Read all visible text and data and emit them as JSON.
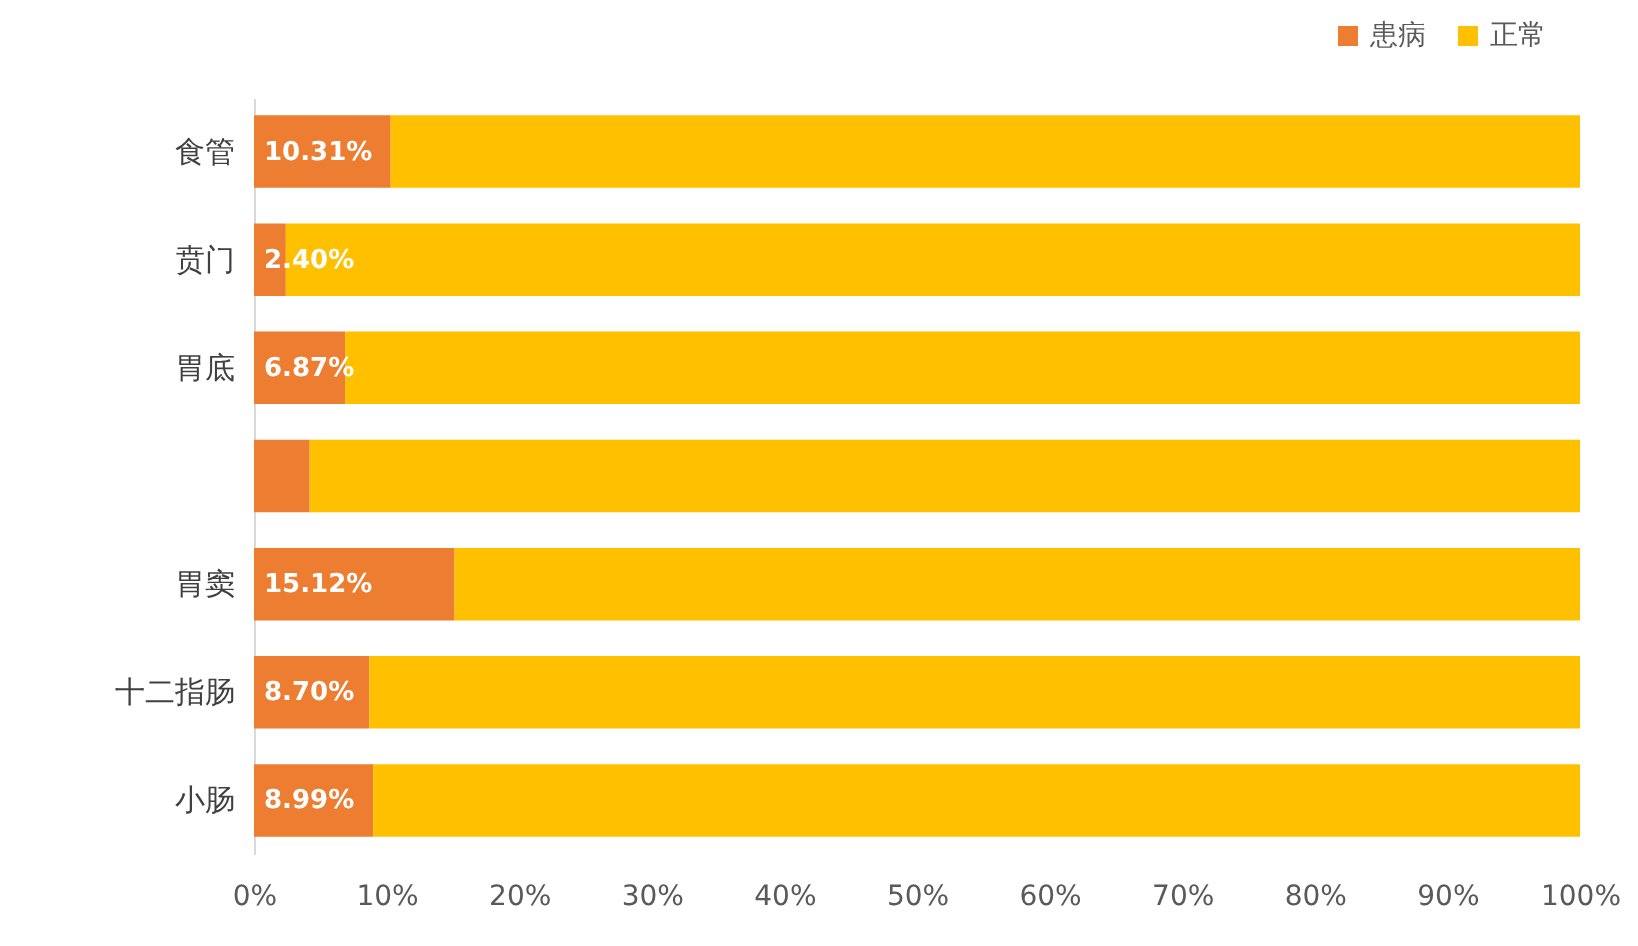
{
  "chart_data": {
    "type": "bar",
    "orientation": "horizontal",
    "stacked": true,
    "categories": [
      "食管",
      "贲门",
      "胃底",
      null,
      "胃窦",
      "十二指肠",
      "小肠"
    ],
    "series": [
      {
        "name": "患病",
        "color": "#ed7d31",
        "values": [
          10.31,
          2.4,
          6.87,
          4.2,
          15.12,
          8.7,
          8.99
        ],
        "value_labels": [
          "10.31%",
          "2.40%",
          "6.87%",
          null,
          "15.12%",
          "8.70%",
          "8.99%"
        ]
      },
      {
        "name": "正常",
        "color": "#ffc000",
        "values": [
          89.69,
          97.6,
          93.13,
          95.8,
          84.88,
          91.3,
          91.01
        ]
      }
    ],
    "xlim": [
      0,
      100
    ],
    "xticks": [
      {
        "value": 0,
        "label": "0%"
      },
      {
        "value": 10,
        "label": "10%"
      },
      {
        "value": 20,
        "label": "20%"
      },
      {
        "value": 30,
        "label": "30%"
      },
      {
        "value": 40,
        "label": "40%"
      },
      {
        "value": 50,
        "label": "50%"
      },
      {
        "value": 60,
        "label": "60%"
      },
      {
        "value": 70,
        "label": "70%"
      },
      {
        "value": 80,
        "label": "80%"
      },
      {
        "value": 90,
        "label": "90%"
      },
      {
        "value": 100,
        "label": "100%"
      }
    ],
    "legend": "top right"
  }
}
